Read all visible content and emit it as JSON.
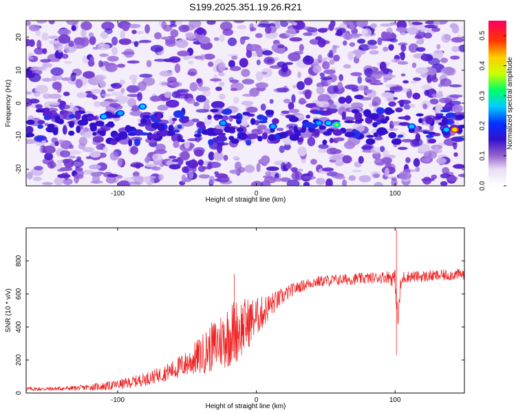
{
  "title": "S199.2025.351.19.26.R21",
  "chart_data": [
    {
      "type": "heatmap",
      "xlabel": "Height of straight line (km)",
      "ylabel": "Frequency (Hz)",
      "xlim": [
        -166,
        150
      ],
      "ylim": [
        -25,
        25
      ],
      "xticks": [
        -100,
        0,
        100
      ],
      "yticks": [
        -20,
        -10,
        0,
        10,
        20
      ],
      "colorbar": {
        "label": "Normalized spectral amplitude",
        "range": [
          0,
          0.55
        ],
        "ticks": [
          0.0,
          0.1,
          0.2,
          0.3,
          0.4,
          0.5
        ],
        "colors": [
          "#ffffff",
          "#9966cc",
          "#3311cc",
          "#0033ff",
          "#00ccff",
          "#00ff66",
          "#ccff00",
          "#ffcc00",
          "#ff3300",
          "#ff0066"
        ]
      },
      "ridge": {
        "description": "strongest amplitudes concentrated near -6 to -8 Hz across the profile",
        "points": [
          {
            "x": -110,
            "y": -4,
            "v": 0.2
          },
          {
            "x": -98,
            "y": -3,
            "v": 0.15
          },
          {
            "x": -82,
            "y": -1,
            "v": 0.18
          },
          {
            "x": -24,
            "y": -6,
            "v": 0.17
          },
          {
            "x": 12,
            "y": -7,
            "v": 0.14
          },
          {
            "x": 45,
            "y": -6,
            "v": 0.16
          },
          {
            "x": 52,
            "y": -6,
            "v": 0.2
          },
          {
            "x": 58,
            "y": -6.5,
            "v": 0.28
          },
          {
            "x": 112,
            "y": -7,
            "v": 0.18
          },
          {
            "x": 137,
            "y": -8,
            "v": 0.22
          },
          {
            "x": 143,
            "y": -8,
            "v": 0.5
          }
        ]
      }
    },
    {
      "type": "line",
      "xlabel": "Height of straight line (km)",
      "ylabel": "SNR (10 * v/v)",
      "xlim": [
        -166,
        150
      ],
      "ylim": [
        0,
        1000
      ],
      "xticks": [
        -100,
        0,
        100
      ],
      "yticks": [
        0,
        200,
        400,
        600,
        800
      ],
      "color": "#ee2222",
      "series": [
        {
          "name": "SNR",
          "x": [
            -166,
            -150,
            -130,
            -110,
            -100,
            -90,
            -80,
            -70,
            -60,
            -50,
            -45,
            -40,
            -35,
            -30,
            -25,
            -20,
            -16,
            -12,
            -8,
            -5,
            0,
            5,
            10,
            15,
            20,
            25,
            30,
            40,
            50,
            60,
            70,
            80,
            90,
            95,
            100,
            102,
            104,
            106,
            110,
            120,
            130,
            140,
            150
          ],
          "values": [
            25,
            25,
            30,
            40,
            50,
            65,
            85,
            110,
            140,
            180,
            205,
            230,
            260,
            290,
            320,
            350,
            370,
            390,
            410,
            430,
            460,
            490,
            530,
            560,
            590,
            620,
            640,
            670,
            680,
            685,
            690,
            695,
            700,
            705,
            690,
            430,
            650,
            700,
            705,
            705,
            710,
            715,
            720
          ],
          "noise_amplitude": [
            12,
            12,
            15,
            25,
            30,
            35,
            40,
            45,
            60,
            80,
            100,
            120,
            140,
            160,
            180,
            200,
            200,
            190,
            170,
            150,
            120,
            100,
            80,
            60,
            50,
            40,
            35,
            35,
            35,
            35,
            35,
            35,
            35,
            40,
            60,
            80,
            50,
            40,
            35,
            35,
            35,
            35,
            35
          ],
          "annotations": [
            {
              "x": -16,
              "y": 720,
              "note": "spike"
            },
            {
              "x": 101,
              "y": 990,
              "note": "spike"
            },
            {
              "x": 101,
              "y": 230,
              "note": "dip"
            }
          ]
        }
      ]
    }
  ]
}
